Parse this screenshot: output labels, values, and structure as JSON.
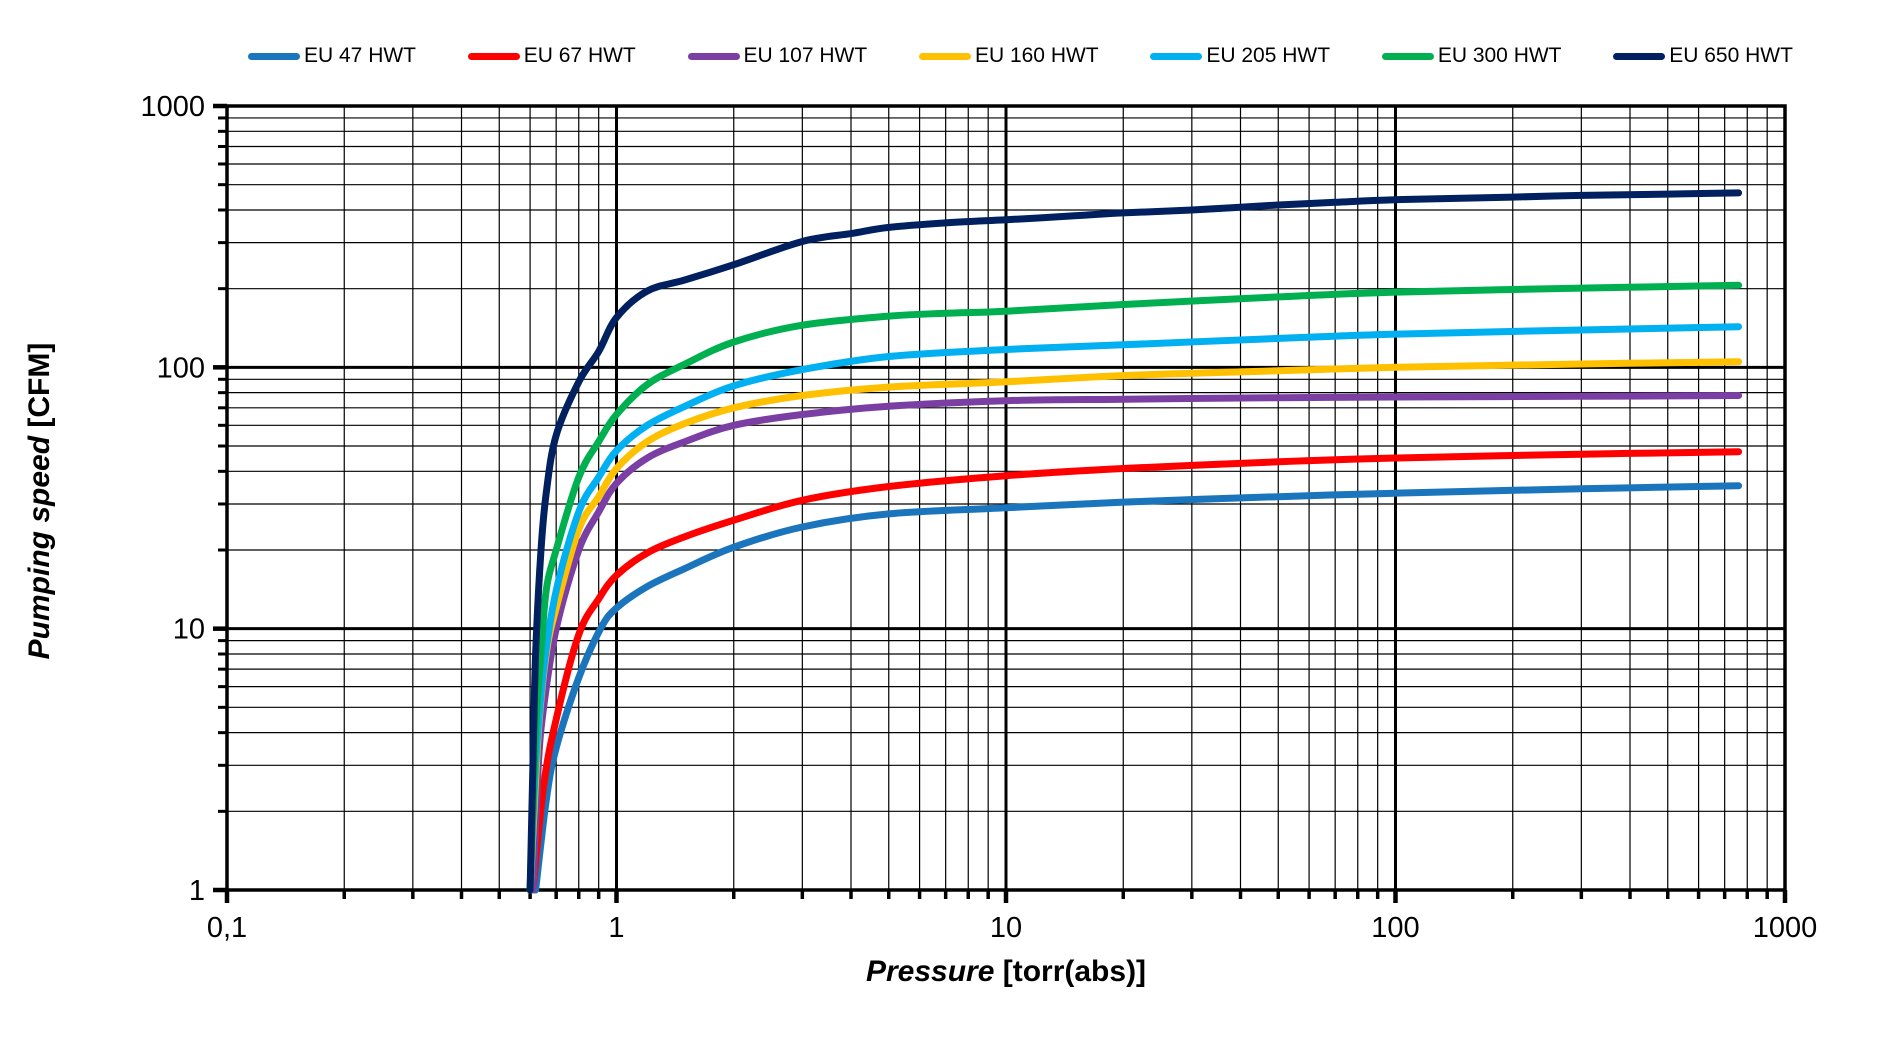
{
  "chart_data": {
    "type": "line",
    "x_scale": "log",
    "y_scale": "log",
    "xlabel_italic": "Pressure",
    "xlabel_unit": " [torr(abs)]",
    "ylabel_italic": "Pumping speed",
    "ylabel_unit": " [CFM]",
    "xlim": [
      0.1,
      1000
    ],
    "ylim": [
      1,
      1000
    ],
    "grid": "log major and minor, both axes, black on white",
    "legend_position": "top",
    "x_ticks": [
      {
        "value": 0.1,
        "label": "0,1"
      },
      {
        "value": 1,
        "label": "1"
      },
      {
        "value": 10,
        "label": "10"
      },
      {
        "value": 100,
        "label": "100"
      },
      {
        "value": 1000,
        "label": "1000"
      }
    ],
    "y_ticks": [
      {
        "value": 1,
        "label": "1"
      },
      {
        "value": 10,
        "label": "10"
      },
      {
        "value": 100,
        "label": "100"
      },
      {
        "value": 1000,
        "label": "1000"
      }
    ],
    "series": [
      {
        "name": "EU 47 HWT",
        "color": "#1B75BC",
        "points": [
          [
            0.62,
            1
          ],
          [
            0.66,
            2.2
          ],
          [
            0.7,
            3.5
          ],
          [
            0.8,
            6.5
          ],
          [
            0.91,
            10
          ],
          [
            1,
            12
          ],
          [
            1.2,
            14.5
          ],
          [
            1.5,
            17
          ],
          [
            2,
            20.5
          ],
          [
            3,
            24.5
          ],
          [
            5,
            27.5
          ],
          [
            10,
            29
          ],
          [
            20,
            30.5
          ],
          [
            50,
            32
          ],
          [
            100,
            33
          ],
          [
            300,
            34.3
          ],
          [
            760,
            35.2
          ]
        ]
      },
      {
        "name": "EU 67 HWT",
        "color": "#FF0000",
        "points": [
          [
            0.61,
            1
          ],
          [
            0.65,
            2.5
          ],
          [
            0.7,
            4.5
          ],
          [
            0.8,
            9.5
          ],
          [
            0.9,
            13
          ],
          [
            1,
            16
          ],
          [
            1.2,
            19.5
          ],
          [
            1.5,
            22.5
          ],
          [
            2,
            26
          ],
          [
            3,
            31
          ],
          [
            5,
            35
          ],
          [
            10,
            38.5
          ],
          [
            20,
            41
          ],
          [
            50,
            43.5
          ],
          [
            100,
            45
          ],
          [
            300,
            46.5
          ],
          [
            760,
            47.5
          ]
        ]
      },
      {
        "name": "EU 107 HWT",
        "color": "#7B3FA3",
        "points": [
          [
            0.61,
            1
          ],
          [
            0.63,
            3
          ],
          [
            0.65,
            5
          ],
          [
            0.7,
            10
          ],
          [
            0.8,
            20
          ],
          [
            0.9,
            28
          ],
          [
            1,
            36
          ],
          [
            1.2,
            45
          ],
          [
            1.5,
            52
          ],
          [
            2,
            60
          ],
          [
            3,
            66
          ],
          [
            5,
            71
          ],
          [
            10,
            74.5
          ],
          [
            20,
            75.5
          ],
          [
            50,
            76.5
          ],
          [
            100,
            77
          ],
          [
            300,
            77.5
          ],
          [
            760,
            78
          ]
        ]
      },
      {
        "name": "EU 160 HWT",
        "color": "#FFC000",
        "points": [
          [
            0.6,
            1
          ],
          [
            0.63,
            4
          ],
          [
            0.66,
            8
          ],
          [
            0.7,
            12
          ],
          [
            0.8,
            24
          ],
          [
            0.9,
            32
          ],
          [
            1,
            41
          ],
          [
            1.2,
            52
          ],
          [
            1.5,
            61
          ],
          [
            2,
            70
          ],
          [
            3,
            78
          ],
          [
            5,
            84
          ],
          [
            10,
            88
          ],
          [
            20,
            93
          ],
          [
            50,
            97
          ],
          [
            100,
            100
          ],
          [
            300,
            103
          ],
          [
            760,
            105
          ]
        ]
      },
      {
        "name": "EU 205 HWT",
        "color": "#00B0F0",
        "points": [
          [
            0.6,
            1
          ],
          [
            0.62,
            3
          ],
          [
            0.65,
            7
          ],
          [
            0.7,
            14
          ],
          [
            0.8,
            28
          ],
          [
            0.9,
            38
          ],
          [
            1,
            48
          ],
          [
            1.2,
            60
          ],
          [
            1.5,
            71
          ],
          [
            2,
            85
          ],
          [
            3,
            98
          ],
          [
            5,
            110
          ],
          [
            10,
            117
          ],
          [
            20,
            122
          ],
          [
            50,
            129
          ],
          [
            100,
            134
          ],
          [
            300,
            139
          ],
          [
            760,
            143
          ]
        ]
      },
      {
        "name": "EU 300 HWT",
        "color": "#00B050",
        "points": [
          [
            0.6,
            1
          ],
          [
            0.62,
            4
          ],
          [
            0.64,
            8
          ],
          [
            0.66,
            14
          ],
          [
            0.7,
            20
          ],
          [
            0.8,
            38
          ],
          [
            0.9,
            52
          ],
          [
            1,
            66
          ],
          [
            1.2,
            86
          ],
          [
            1.5,
            103
          ],
          [
            2,
            125
          ],
          [
            3,
            145
          ],
          [
            5,
            157
          ],
          [
            7,
            161
          ],
          [
            10,
            164
          ],
          [
            20,
            174
          ],
          [
            50,
            186
          ],
          [
            100,
            194
          ],
          [
            300,
            201
          ],
          [
            760,
            206
          ]
        ]
      },
      {
        "name": "EU 650 HWT",
        "color": "#002060",
        "points": [
          [
            0.6,
            1
          ],
          [
            0.61,
            3
          ],
          [
            0.62,
            8
          ],
          [
            0.64,
            20
          ],
          [
            0.66,
            33
          ],
          [
            0.7,
            55
          ],
          [
            0.8,
            88
          ],
          [
            0.9,
            115
          ],
          [
            1,
            155
          ],
          [
            1.2,
            196
          ],
          [
            1.5,
            216
          ],
          [
            2,
            247
          ],
          [
            3,
            303
          ],
          [
            4,
            325
          ],
          [
            5,
            343
          ],
          [
            7,
            357
          ],
          [
            10,
            367
          ],
          [
            15,
            380
          ],
          [
            20,
            390
          ],
          [
            30,
            400
          ],
          [
            50,
            418
          ],
          [
            70,
            428
          ],
          [
            100,
            438
          ],
          [
            200,
            448
          ],
          [
            300,
            455
          ],
          [
            500,
            460
          ],
          [
            760,
            465
          ]
        ]
      }
    ]
  }
}
